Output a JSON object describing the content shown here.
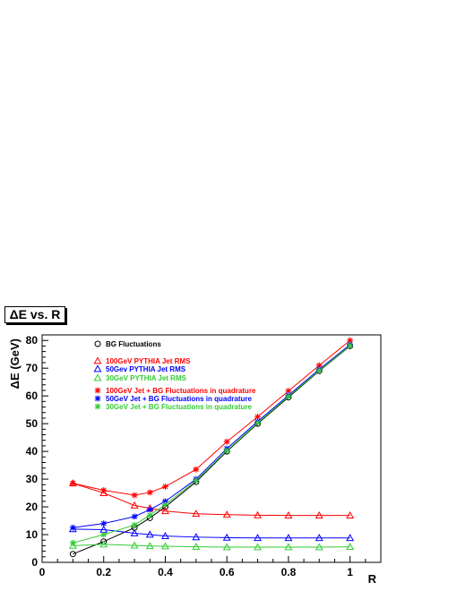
{
  "chart_data": {
    "type": "scatter",
    "title": "ΔE vs. R",
    "xlabel": "R",
    "ylabel": "ΔE (GeV)",
    "xlim": [
      0,
      1.1
    ],
    "ylim": [
      0,
      82
    ],
    "xticks": [
      0,
      0.2,
      0.4,
      0.6,
      0.8,
      1
    ],
    "yticks": [
      0,
      10,
      20,
      30,
      40,
      50,
      60,
      70,
      80
    ],
    "grid": false,
    "legend_position": "top-left",
    "colors": {
      "bg": "#000000",
      "jet100": "#ff0000",
      "jet50": "#0000ff",
      "jet30": "#33cc33"
    },
    "series": [
      {
        "name": "BG Fluctuations",
        "marker": "circle",
        "color": "#000000",
        "x": [
          0.1,
          0.2,
          0.3,
          0.35,
          0.4,
          0.5,
          0.6,
          0.7,
          0.8,
          0.9,
          1.0
        ],
        "y": [
          3,
          7.5,
          12.5,
          16,
          20,
          29,
          40,
          50,
          59.5,
          69,
          78
        ]
      },
      {
        "name": "100GeV PYTHIA Jet RMS",
        "marker": "triangle",
        "color": "#ff0000",
        "x": [
          0.1,
          0.2,
          0.3,
          0.35,
          0.4,
          0.5,
          0.6,
          0.7,
          0.8,
          0.9,
          1.0
        ],
        "y": [
          28.5,
          25,
          20.5,
          19.5,
          18.5,
          17.5,
          17.2,
          17,
          16.9,
          16.9,
          16.9
        ]
      },
      {
        "name": "50Gev PYTHIA Jet RMS",
        "marker": "triangle",
        "color": "#0000ff",
        "x": [
          0.1,
          0.2,
          0.3,
          0.35,
          0.4,
          0.5,
          0.6,
          0.7,
          0.8,
          0.9,
          1.0
        ],
        "y": [
          12,
          11.8,
          10.5,
          10,
          9.5,
          9.1,
          8.9,
          8.8,
          8.8,
          8.8,
          8.8
        ]
      },
      {
        "name": "30GeV PYTHIA Jet RMS",
        "marker": "triangle",
        "color": "#33cc33",
        "x": [
          0.1,
          0.2,
          0.3,
          0.35,
          0.4,
          0.5,
          0.6,
          0.7,
          0.8,
          0.9,
          1.0
        ],
        "y": [
          6,
          6.5,
          6.1,
          5.9,
          5.8,
          5.6,
          5.5,
          5.5,
          5.5,
          5.5,
          5.6
        ]
      },
      {
        "name": "100GeV Jet + BG Fluctuations in quadrature",
        "marker": "star",
        "color": "#ff0000",
        "x": [
          0.1,
          0.2,
          0.3,
          0.35,
          0.4,
          0.5,
          0.6,
          0.7,
          0.8,
          0.9,
          1.0
        ],
        "y": [
          28.5,
          26,
          24.2,
          25.2,
          27.3,
          33.5,
          43.5,
          52.5,
          61.8,
          71,
          80
        ]
      },
      {
        "name": "50GeV Jet + BG Fluctuations in quadrature",
        "marker": "star",
        "color": "#0000ff",
        "x": [
          0.1,
          0.2,
          0.3,
          0.35,
          0.4,
          0.5,
          0.6,
          0.7,
          0.8,
          0.9,
          1.0
        ],
        "y": [
          12.5,
          14,
          16.5,
          19,
          22,
          30,
          41,
          50.8,
          60.2,
          69.6,
          78.5
        ]
      },
      {
        "name": "30GeV Jet + BG Fluctuations in quadrature",
        "marker": "star",
        "color": "#33cc33",
        "x": [
          0.1,
          0.2,
          0.3,
          0.35,
          0.4,
          0.5,
          0.6,
          0.7,
          0.8,
          0.9,
          1.0
        ],
        "y": [
          7,
          10,
          13.5,
          17,
          20.8,
          29.5,
          40.3,
          50.3,
          59.8,
          69.2,
          78.2
        ]
      }
    ]
  }
}
